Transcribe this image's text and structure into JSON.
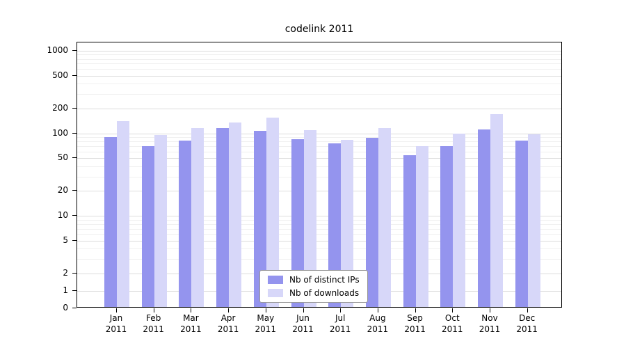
{
  "chart_data": {
    "type": "bar",
    "title": "codelink 2011",
    "categories": [
      "Jan 2011",
      "Feb 2011",
      "Mar 2011",
      "Apr 2011",
      "May 2011",
      "Jun 2011",
      "Jul 2011",
      "Aug 2011",
      "Sep 2011",
      "Oct 2011",
      "Nov 2011",
      "Dec 2011"
    ],
    "series": [
      {
        "name": "Nb of distinct IPs",
        "color": "#9494ee",
        "values": [
          90,
          70,
          82,
          115,
          108,
          85,
          76,
          88,
          54,
          70,
          112,
          82
        ]
      },
      {
        "name": "Nb of downloads",
        "color": "#d7d7f9",
        "values": [
          140,
          95,
          115,
          135,
          155,
          110,
          83,
          115,
          70,
          100,
          170,
          98
        ]
      }
    ],
    "yticks": [
      0,
      1,
      2,
      5,
      10,
      20,
      50,
      100,
      200,
      500,
      1000
    ],
    "yscale": "symlog",
    "ylim": [
      0,
      1250
    ],
    "xlabel": "",
    "ylabel": "",
    "grid": true,
    "legend_position": "bottom-center"
  }
}
